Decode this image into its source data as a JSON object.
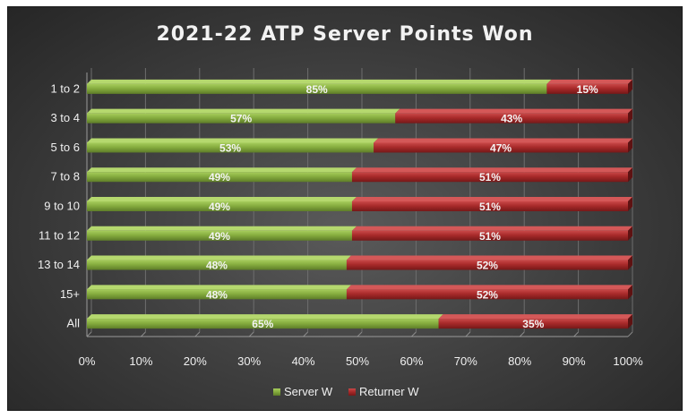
{
  "chart_data": {
    "type": "bar",
    "orientation": "horizontal",
    "stacked": "100%",
    "title": "2021-22 ATP Server Points Won",
    "categories": [
      "1 to 2",
      "3 to 4",
      "5 to 6",
      "7 to 8",
      "9 to 10",
      "11 to 12",
      "13 to 14",
      "15+",
      "All"
    ],
    "series": [
      {
        "name": "Server W",
        "color": "#7fa23a",
        "values": [
          85,
          57,
          53,
          49,
          49,
          49,
          48,
          48,
          65
        ]
      },
      {
        "name": "Returner W",
        "color": "#a82a2a",
        "values": [
          15,
          43,
          47,
          51,
          51,
          51,
          52,
          52,
          35
        ]
      }
    ],
    "data_labels": [
      [
        "85%",
        "57%",
        "53%",
        "49%",
        "49%",
        "49%",
        "48%",
        "48%",
        "65%"
      ],
      [
        "15%",
        "43%",
        "47%",
        "51%",
        "51%",
        "51%",
        "52%",
        "52%",
        "35%"
      ]
    ],
    "x_ticks": [
      "0%",
      "10%",
      "20%",
      "30%",
      "40%",
      "50%",
      "60%",
      "70%",
      "80%",
      "90%",
      "100%"
    ],
    "xlim": [
      0,
      100
    ],
    "grid": true,
    "legend_position": "bottom-center",
    "xlabel": "",
    "ylabel": ""
  }
}
